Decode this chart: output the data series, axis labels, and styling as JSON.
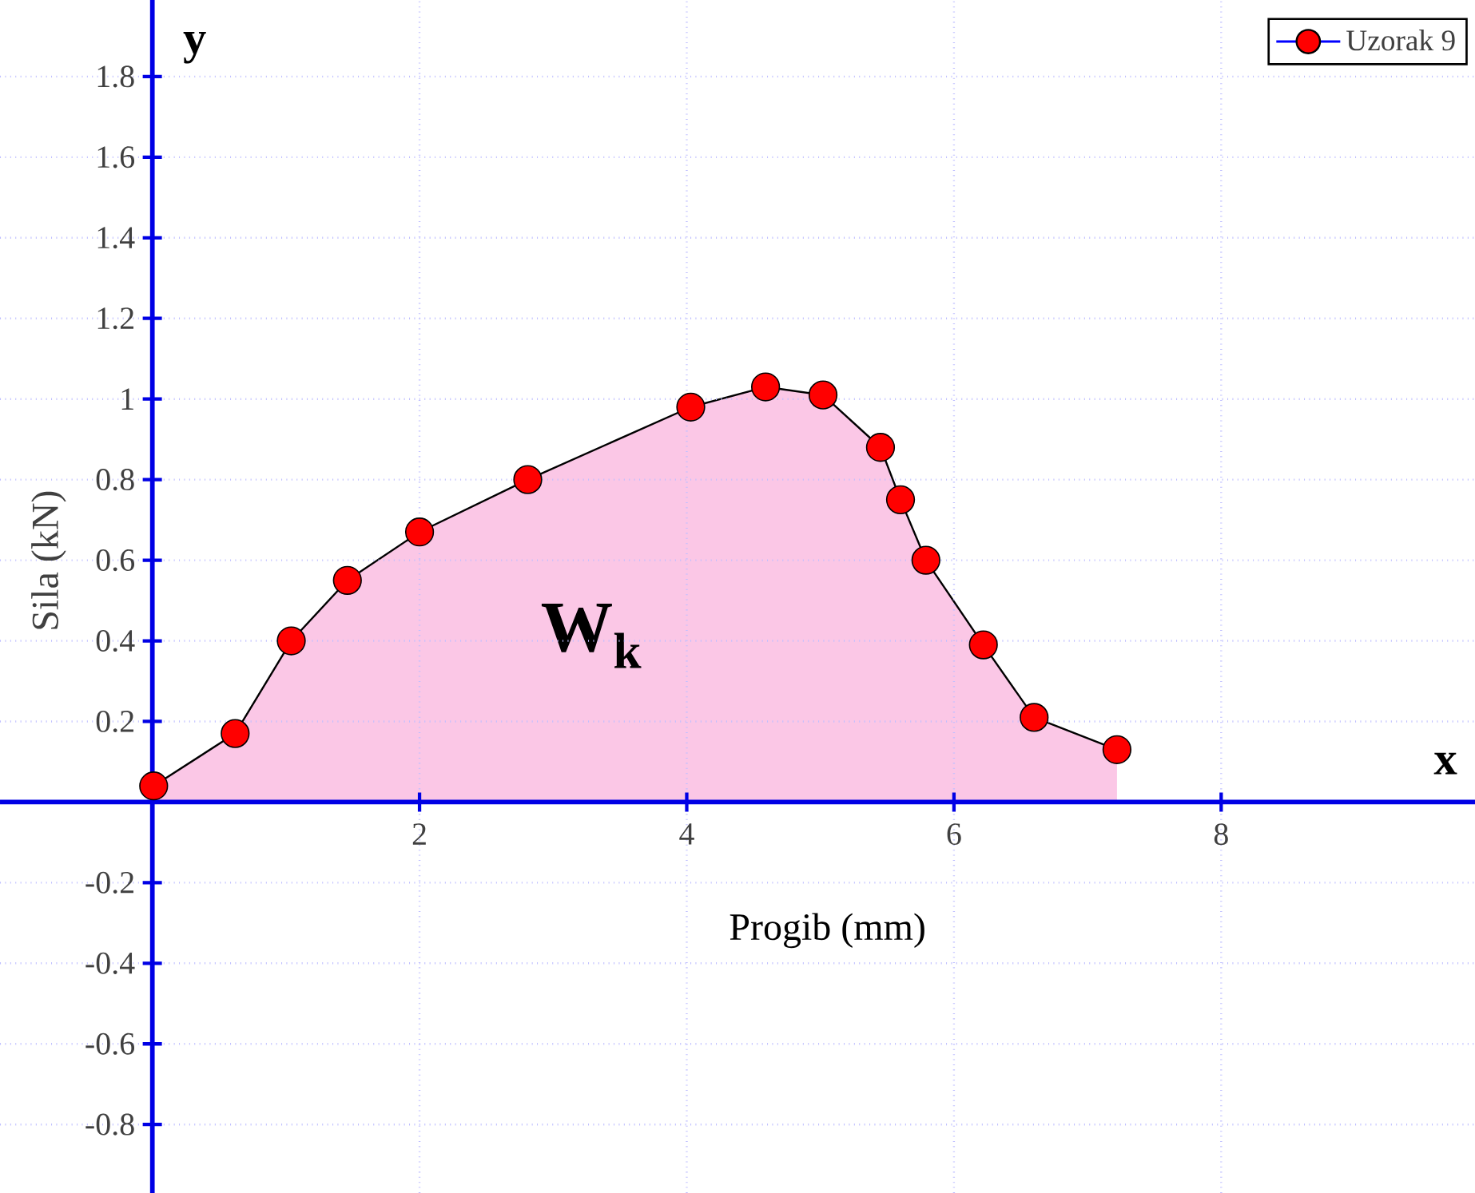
{
  "chart_data": {
    "type": "area",
    "xlabel": "Progib (mm)",
    "ylabel": "Sila (kN)",
    "xlim": [
      -1.14,
      9.9
    ],
    "ylim": [
      -0.97,
      1.99
    ],
    "xticks": [
      2,
      4,
      6,
      8
    ],
    "yticks": [
      -0.8,
      -0.6,
      -0.4,
      -0.2,
      0.2,
      0.4,
      0.6,
      0.8,
      1,
      1.2,
      1.4,
      1.6,
      1.8
    ],
    "grid": true,
    "legend": "top right",
    "marker": "circle",
    "line_style": "solid",
    "series": [
      {
        "name": "Uzorak 9",
        "color": "#ff0000",
        "x": [
          0.01,
          0.62,
          1.04,
          1.46,
          2.0,
          2.81,
          4.03,
          4.59,
          5.02,
          5.45,
          5.6,
          5.79,
          6.22,
          6.6,
          7.22
        ],
        "values": [
          0.04,
          0.17,
          0.4,
          0.55,
          0.67,
          0.8,
          0.98,
          1.03,
          1.01,
          0.88,
          0.75,
          0.6,
          0.39,
          0.21,
          0.13
        ]
      }
    ],
    "annotations": [
      "W$_{k}$",
      "x",
      "y"
    ]
  }
}
